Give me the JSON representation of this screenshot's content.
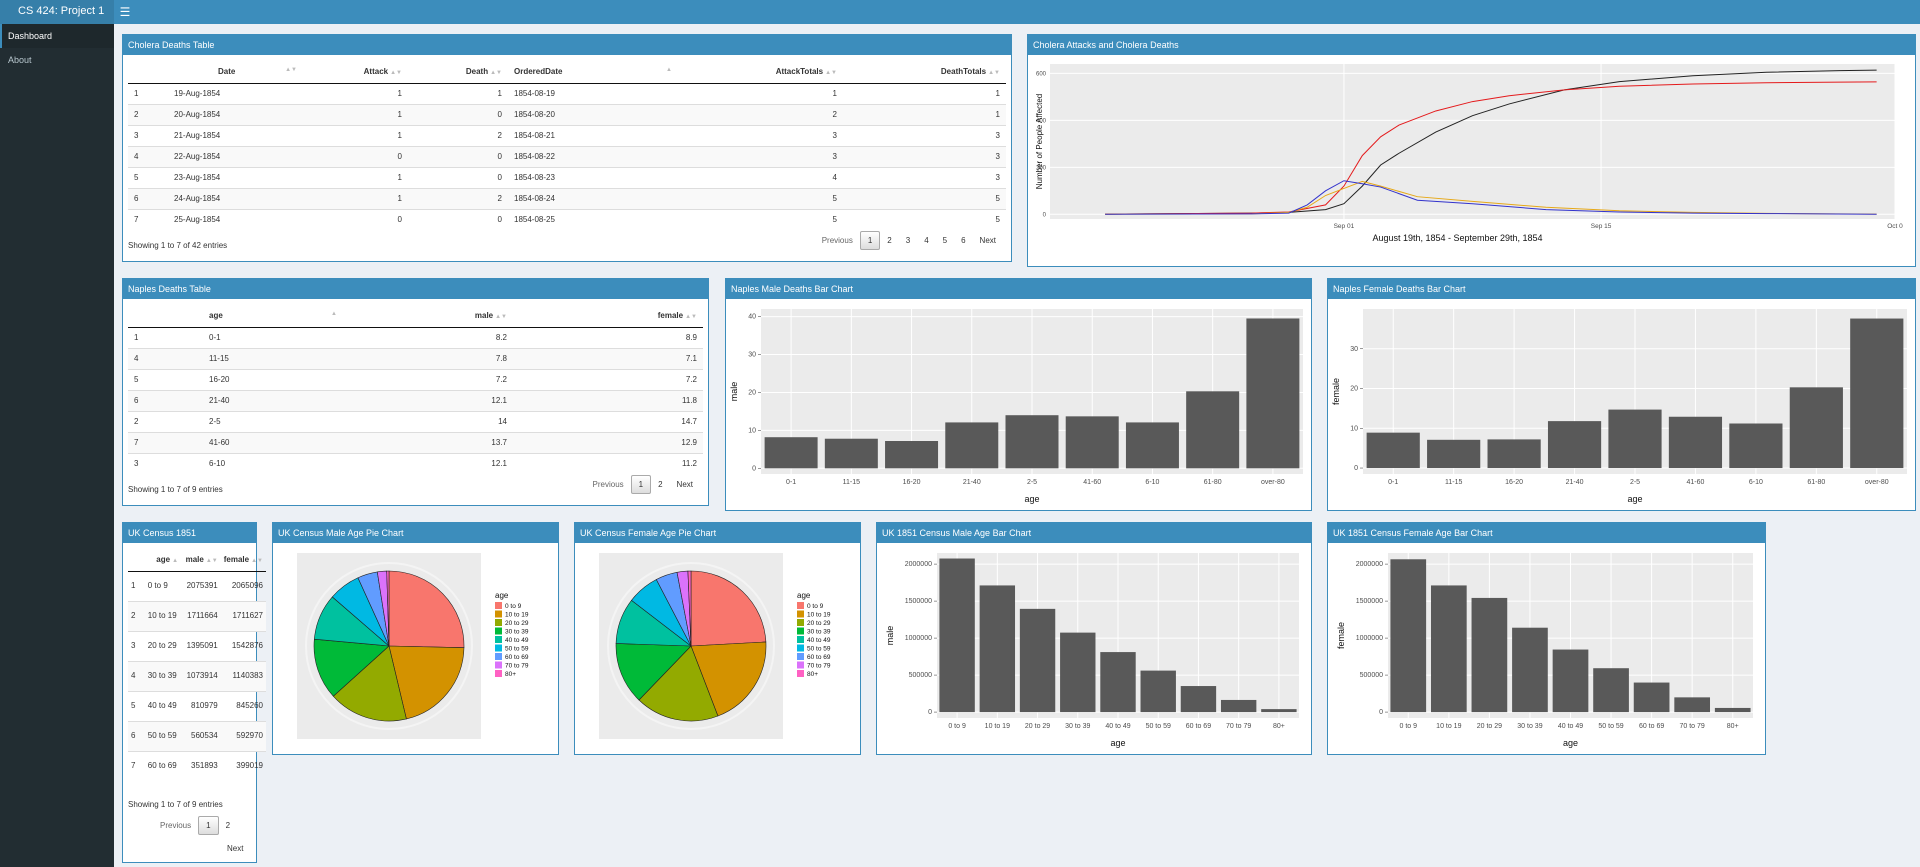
{
  "app": {
    "title": "CS 424: Project 1",
    "menu_icon": "hamburger-icon"
  },
  "sidebar": {
    "items": [
      {
        "label": "Dashboard"
      },
      {
        "label": "About"
      }
    ]
  },
  "pagination": {
    "previous": "Previous",
    "next": "Next"
  },
  "cholera_table": {
    "title": "Cholera Deaths Table",
    "columns": [
      "",
      "Date",
      "Attack",
      "Death",
      "OrderedDate",
      "AttackTotals",
      "DeathTotals"
    ],
    "rows": [
      [
        "1",
        "19-Aug-1854",
        "1",
        "1",
        "1854-08-19",
        "1",
        "1"
      ],
      [
        "2",
        "20-Aug-1854",
        "1",
        "0",
        "1854-08-20",
        "2",
        "1"
      ],
      [
        "3",
        "21-Aug-1854",
        "1",
        "2",
        "1854-08-21",
        "3",
        "3"
      ],
      [
        "4",
        "22-Aug-1854",
        "0",
        "0",
        "1854-08-22",
        "3",
        "3"
      ],
      [
        "5",
        "23-Aug-1854",
        "1",
        "0",
        "1854-08-23",
        "4",
        "3"
      ],
      [
        "6",
        "24-Aug-1854",
        "1",
        "2",
        "1854-08-24",
        "5",
        "5"
      ],
      [
        "7",
        "25-Aug-1854",
        "0",
        "0",
        "1854-08-25",
        "5",
        "5"
      ]
    ],
    "info": "Showing 1 to 7 of 42 entries",
    "pages": [
      "1",
      "2",
      "3",
      "4",
      "5",
      "6"
    ]
  },
  "naples_table": {
    "title": "Naples Deaths Table",
    "columns": [
      "",
      "age",
      "male",
      "female"
    ],
    "rows": [
      [
        "1",
        "0-1",
        "8.2",
        "8.9"
      ],
      [
        "4",
        "11-15",
        "7.8",
        "7.1"
      ],
      [
        "5",
        "16-20",
        "7.2",
        "7.2"
      ],
      [
        "6",
        "21-40",
        "12.1",
        "11.8"
      ],
      [
        "2",
        "2-5",
        "14",
        "14.7"
      ],
      [
        "7",
        "41-60",
        "13.7",
        "12.9"
      ],
      [
        "3",
        "6-10",
        "12.1",
        "11.2"
      ]
    ],
    "info": "Showing 1 to 7 of 9 entries",
    "pages": [
      "1",
      "2"
    ]
  },
  "census_table": {
    "title": "UK Census 1851",
    "columns": [
      "",
      "age",
      "male",
      "female"
    ],
    "rows": [
      [
        "1",
        "0 to 9",
        "2075391",
        "2065096"
      ],
      [
        "2",
        "10 to 19",
        "1711664",
        "1711627"
      ],
      [
        "3",
        "20 to 29",
        "1395091",
        "1542876"
      ],
      [
        "4",
        "30 to 39",
        "1073914",
        "1140383"
      ],
      [
        "5",
        "40 to 49",
        "810979",
        "845260"
      ],
      [
        "6",
        "50 to 59",
        "560534",
        "592970"
      ],
      [
        "7",
        "60 to 69",
        "351893",
        "399019"
      ]
    ],
    "info": "Showing 1 to 7 of 9 entries",
    "pages": [
      "1",
      "2"
    ]
  },
  "cholera_chart": {
    "title": "Cholera Attacks and Cholera Deaths",
    "chart_data": {
      "type": "line",
      "xlabel": "August 19th, 1854 - September 29th, 1854",
      "ylabel": "Number of People Affected",
      "x_ticks": [
        "Sep 01",
        "Sep 15",
        "Oct 0"
      ],
      "y_ticks": [
        0,
        200,
        400,
        600
      ],
      "ylim": [
        -20,
        640
      ],
      "grid": true,
      "x_day_range": [
        -3,
        43
      ],
      "series": [
        {
          "color": "#222222",
          "x": [
            0,
            8,
            10,
            12,
            13,
            14,
            15,
            16,
            18,
            20,
            22,
            25,
            28,
            32,
            36,
            40,
            42
          ],
          "values": [
            1,
            5,
            8,
            20,
            45,
            120,
            210,
            260,
            350,
            420,
            470,
            530,
            565,
            590,
            605,
            612,
            614
          ]
        },
        {
          "color": "#e41a1c",
          "x": [
            0,
            8,
            10,
            12,
            13,
            14,
            15,
            16,
            18,
            20,
            22,
            25,
            28,
            32,
            36,
            40,
            42
          ],
          "values": [
            1,
            5,
            10,
            40,
            120,
            250,
            330,
            380,
            440,
            480,
            505,
            530,
            545,
            555,
            560,
            563,
            564
          ]
        },
        {
          "color": "#e6a817",
          "x": [
            0,
            8,
            10,
            11,
            12,
            13,
            14,
            15,
            17,
            20,
            24,
            28,
            32,
            36,
            42
          ],
          "values": [
            0,
            2,
            8,
            30,
            80,
            110,
            140,
            120,
            75,
            55,
            30,
            15,
            8,
            4,
            1
          ]
        },
        {
          "color": "#3333cc",
          "x": [
            0,
            8,
            10,
            11,
            12,
            13,
            14,
            15,
            17,
            20,
            24,
            28,
            32,
            36,
            42
          ],
          "values": [
            0,
            2,
            5,
            40,
            100,
            143,
            130,
            116,
            60,
            45,
            20,
            10,
            5,
            3,
            0
          ]
        }
      ]
    }
  },
  "naples_male_chart": {
    "title": "Naples Male Deaths Bar Chart",
    "chart_data": {
      "type": "bar",
      "categories": [
        "0-1",
        "11-15",
        "16-20",
        "21-40",
        "2-5",
        "41-60",
        "6-10",
        "61-80",
        "over-80"
      ],
      "values": [
        8.2,
        7.8,
        7.2,
        12.1,
        14,
        13.7,
        12.1,
        20.3,
        39.5
      ],
      "xlabel": "age",
      "ylabel": "male",
      "ylim": [
        -1.5,
        42
      ],
      "y_ticks": [
        0,
        10,
        20,
        30,
        40
      ]
    }
  },
  "naples_female_chart": {
    "title": "Naples Female Deaths Bar Chart",
    "chart_data": {
      "type": "bar",
      "categories": [
        "0-1",
        "11-15",
        "16-20",
        "21-40",
        "2-5",
        "41-60",
        "6-10",
        "61-80",
        "over-80"
      ],
      "values": [
        8.9,
        7.1,
        7.2,
        11.8,
        14.7,
        12.9,
        11.2,
        20.3,
        37.6
      ],
      "xlabel": "age",
      "ylabel": "female",
      "ylim": [
        -1.5,
        40
      ],
      "y_ticks": [
        0,
        10,
        20,
        30
      ]
    }
  },
  "male_pie_chart": {
    "title": "UK Census Male Age Pie Chart",
    "chart_data": {
      "type": "pie",
      "legend_title": "age",
      "legend_position": "right",
      "categories": [
        "0 to 9",
        "10 to 19",
        "20 to 29",
        "30 to 39",
        "40 to 49",
        "50 to 59",
        "60 to 69",
        "70 to 79",
        "80+"
      ],
      "values": [
        2075391,
        1711664,
        1395091,
        1073914,
        810979,
        560534,
        351893,
        164000,
        40000
      ],
      "colors": [
        "#f8766d",
        "#d39200",
        "#93aa00",
        "#00ba38",
        "#00c19f",
        "#00b9e3",
        "#619cff",
        "#db72fb",
        "#ff61c3"
      ]
    }
  },
  "female_pie_chart": {
    "title": "UK Census Female Age Pie Chart",
    "chart_data": {
      "type": "pie",
      "legend_title": "age",
      "legend_position": "right",
      "categories": [
        "0 to 9",
        "10 to 19",
        "20 to 29",
        "30 to 39",
        "40 to 49",
        "50 to 59",
        "60 to 69",
        "70 to 79",
        "80+"
      ],
      "values": [
        2065096,
        1711627,
        1542876,
        1140383,
        845260,
        592970,
        399019,
        199000,
        56000
      ],
      "colors": [
        "#f8766d",
        "#d39200",
        "#93aa00",
        "#00ba38",
        "#00c19f",
        "#00b9e3",
        "#619cff",
        "#db72fb",
        "#ff61c3"
      ]
    }
  },
  "male_census_chart": {
    "title": "UK 1851 Census Male Age Bar Chart",
    "chart_data": {
      "type": "bar",
      "categories": [
        "0 to 9",
        "10 to 19",
        "20 to 29",
        "30 to 39",
        "40 to 49",
        "50 to 59",
        "60 to 69",
        "70 to 79",
        "80+"
      ],
      "values": [
        2075391,
        1711664,
        1395091,
        1073914,
        810979,
        560534,
        351893,
        164000,
        40000
      ],
      "xlabel": "age",
      "ylabel": "male",
      "ylim": [
        -80000,
        2150000
      ],
      "y_ticks": [
        0,
        500000,
        1000000,
        1500000,
        2000000
      ]
    }
  },
  "female_census_chart": {
    "title": "UK 1851 Census Female Age Bar Chart",
    "chart_data": {
      "type": "bar",
      "categories": [
        "0 to 9",
        "10 to 19",
        "20 to 29",
        "30 to 39",
        "40 to 49",
        "50 to 59",
        "60 to 69",
        "70 to 79",
        "80+"
      ],
      "values": [
        2065096,
        1711627,
        1542876,
        1140383,
        845260,
        592970,
        399019,
        199000,
        56000
      ],
      "xlabel": "age",
      "ylabel": "female",
      "ylim": [
        -80000,
        2150000
      ],
      "y_ticks": [
        0,
        500000,
        1000000,
        1500000,
        2000000
      ]
    }
  }
}
